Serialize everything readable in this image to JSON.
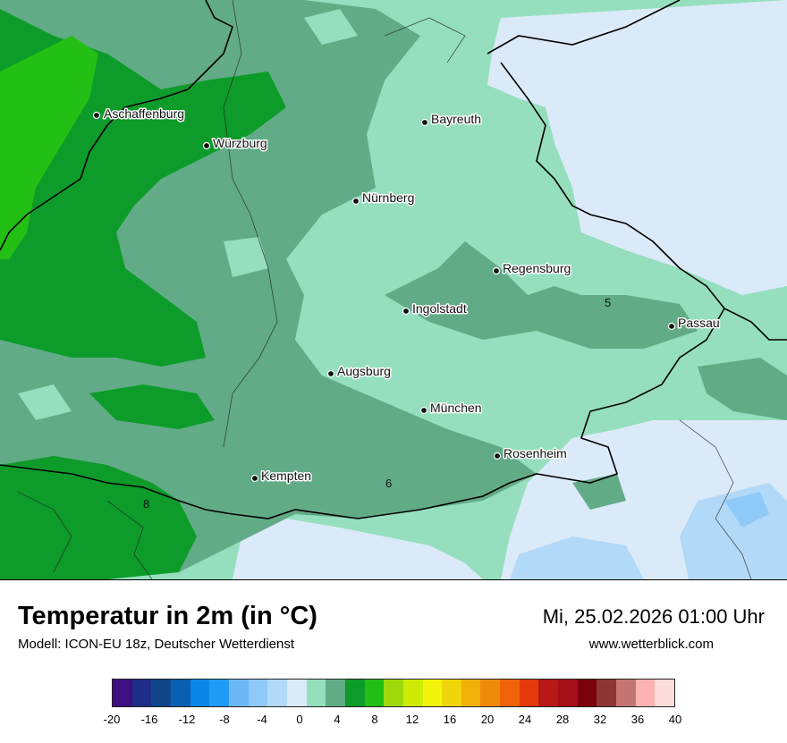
{
  "map": {
    "cities": [
      {
        "name": "Aschaffenburg"
      },
      {
        "name": "Würzburg"
      },
      {
        "name": "Bayreuth"
      },
      {
        "name": "Nürnberg"
      },
      {
        "name": "Regensburg"
      },
      {
        "name": "Ingolstadt"
      },
      {
        "name": "Passau"
      },
      {
        "name": "Augsburg"
      },
      {
        "name": "München"
      },
      {
        "name": "Rosenheim"
      },
      {
        "name": "Kempten"
      }
    ],
    "value_labels": [
      "5",
      "6",
      "8"
    ]
  },
  "footer": {
    "title": "Temperatur in 2m (in °C)",
    "subtitle": "Modell: ICON-EU 18z, Deutscher Wetterdienst",
    "datetime": "Mi, 25.02.2026 01:00 Uhr",
    "website": "www.wetterblick.com"
  },
  "legend": {
    "colors": [
      "#3c0f82",
      "#1e2d87",
      "#0e4689",
      "#0b5fb0",
      "#0a86e8",
      "#1f9bf5",
      "#6cb8f7",
      "#8ec9f8",
      "#b3d9f8",
      "#dbeaf9",
      "#95dfbe",
      "#62ab87",
      "#0d9b2a",
      "#23bf14",
      "#9fd90b",
      "#cdeb05",
      "#f2f50a",
      "#f0d50a",
      "#f0b209",
      "#f08a0a",
      "#f06308",
      "#e5390b",
      "#b81916",
      "#a6101a",
      "#7a0009",
      "#8d3535",
      "#c57474",
      "#fdb3b3",
      "#fddcdc"
    ],
    "ticks": [
      "-20",
      "-16",
      "-12",
      "-8",
      "-4",
      "0",
      "4",
      "8",
      "12",
      "16",
      "20",
      "24",
      "28",
      "32",
      "36",
      "40"
    ]
  },
  "colors": {
    "temp_0_2": "#dbeaf9",
    "temp_2_4": "#95dfbe",
    "temp_4_6": "#62ab87",
    "temp_6_8": "#0d9b2a",
    "temp_8_10": "#23bf14",
    "temp_neg2_0": "#b3d9f8",
    "temp_neg4_neg2": "#8ec9f8",
    "temp_neg6_neg4": "#6cb8f7"
  }
}
